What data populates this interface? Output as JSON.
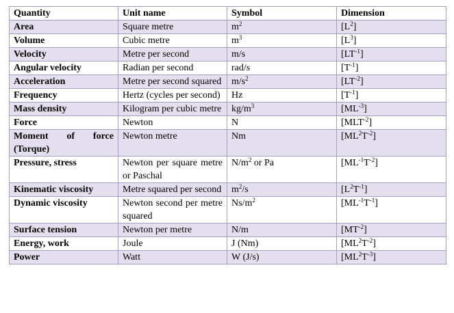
{
  "table": {
    "headers": [
      "Quantity",
      "Unit name",
      "Symbol",
      "Dimension"
    ],
    "rows": [
      {
        "quantity": "Area",
        "unit": "Square metre",
        "symbol": "m<sup>2</sup>",
        "dimension": "[L<sup>2</sup>]",
        "shaded": true
      },
      {
        "quantity": "Volume",
        "unit": "Cubic metre",
        "symbol": "m<sup>3</sup>",
        "dimension": "[L<sup>3</sup>]",
        "shaded": false
      },
      {
        "quantity": "Velocity",
        "unit": "Metre per second",
        "symbol": "m/s",
        "dimension": "[LT<sup>-1</sup>]",
        "shaded": true
      },
      {
        "quantity": "Angular velocity",
        "unit": "Radian per second",
        "symbol": "rad/s",
        "dimension": "[T<sup>-1</sup>]",
        "shaded": false
      },
      {
        "quantity": "Acceleration",
        "unit": "Metre per second squared",
        "symbol": "m/s<sup>2</sup>",
        "dimension": "[LT<sup>-2</sup>]",
        "shaded": true
      },
      {
        "quantity": "Frequency",
        "unit": "Hertz (cycles per second)",
        "symbol": "Hz",
        "dimension": "[T<sup>-1</sup>]",
        "shaded": false
      },
      {
        "quantity": "Mass density",
        "unit": "Kilogram per cubic metre",
        "symbol": "kg/m<sup>3</sup>",
        "dimension": "[ML<sup>-3</sup>]",
        "shaded": true
      },
      {
        "quantity": "Force",
        "unit": "Newton",
        "symbol": "N",
        "dimension": "[MLT<sup>-2</sup>]",
        "shaded": false
      },
      {
        "quantity": "Moment of force (Torque)",
        "unit": "Newton metre",
        "symbol": "Nm",
        "dimension": "[ML<sup>2</sup>T<sup>-2</sup>]",
        "shaded": true
      },
      {
        "quantity": "Pressure, stress",
        "unit": "Newton per square metre or Paschal",
        "symbol": "N/m<sup>2</sup> or Pa",
        "dimension": "[ML<sup>-1</sup>T<sup>-2</sup>]",
        "shaded": false
      },
      {
        "quantity": "Kinematic viscosity",
        "unit": "Metre squared per second",
        "symbol": "m<sup>2</sup>/s",
        "dimension": "[L<sup>2</sup>T<sup>-1</sup>]",
        "shaded": true
      },
      {
        "quantity": "Dynamic viscosity",
        "unit": "Newton second per metre squared",
        "symbol": "Ns/m<sup>2</sup>",
        "dimension": "[ML<sup>-1</sup>T<sup>-1</sup>]",
        "shaded": false
      },
      {
        "quantity": "Surface tension",
        "unit": "Newton per metre",
        "symbol": "N/m",
        "dimension": "[MT<sup>-2</sup>]",
        "shaded": true
      },
      {
        "quantity": "Energy, work",
        "unit": "Joule",
        "symbol": "J (Nm)",
        "dimension": "[ML<sup>2</sup>T<sup>-2</sup>]",
        "shaded": false
      },
      {
        "quantity": "Power",
        "unit": "Watt",
        "symbol": "W (J/s)",
        "dimension": "[ML<sup>2</sup>T<sup>-3</sup>]",
        "shaded": true
      }
    ]
  },
  "colors": {
    "border": "#a79cc4",
    "shaded_row": "#e4dfee",
    "plain_row": "#ffffff",
    "text": "#000000"
  }
}
